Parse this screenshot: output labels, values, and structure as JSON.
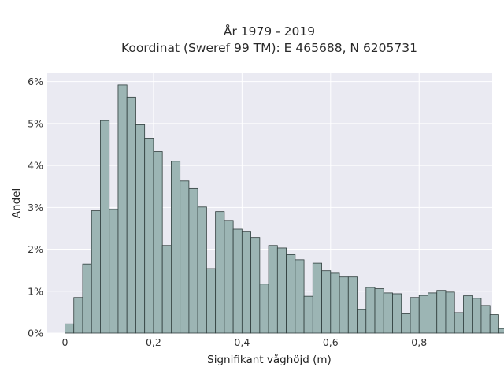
{
  "chart_data": {
    "type": "bar",
    "title_lines": [
      "År 1979 - 2019",
      "Koordinat (Sweref 99 TM): E 465688, N 6205731"
    ],
    "xlabel": "Signifikant våghöjd (m)",
    "ylabel": "Andel",
    "x_ticks": [
      {
        "value": 0,
        "label": "0"
      },
      {
        "value": 0.2,
        "label": "0,2"
      },
      {
        "value": 0.4,
        "label": "0,4"
      },
      {
        "value": 0.6,
        "label": "0,6"
      },
      {
        "value": 0.8,
        "label": "0,8"
      }
    ],
    "y_ticks": [
      {
        "value": 0,
        "label": "0%"
      },
      {
        "value": 1,
        "label": "1%"
      },
      {
        "value": 2,
        "label": "2%"
      },
      {
        "value": 3,
        "label": "3%"
      },
      {
        "value": 4,
        "label": "4%"
      },
      {
        "value": 5,
        "label": "5%"
      },
      {
        "value": 6,
        "label": "6%"
      }
    ],
    "xlim": [
      -0.04,
      0.965
    ],
    "ylim": [
      0,
      6.2
    ],
    "grid": true,
    "bin_start": 0.01,
    "bin_width": 0.02,
    "values": [
      0.22,
      0.85,
      1.65,
      2.92,
      5.07,
      2.95,
      5.92,
      5.63,
      4.97,
      4.65,
      4.33,
      2.09,
      4.1,
      3.63,
      3.45,
      3.01,
      1.54,
      2.9,
      2.69,
      2.48,
      2.43,
      2.28,
      1.17,
      2.09,
      2.03,
      1.87,
      1.75,
      0.88,
      1.67,
      1.49,
      1.43,
      1.34,
      1.34,
      0.56,
      1.09,
      1.06,
      0.96,
      0.94,
      0.46,
      0.85,
      0.9,
      0.96,
      1.02,
      0.98,
      0.49,
      0.89,
      0.83,
      0.66,
      0.44,
      0.11
    ],
    "colors": {
      "bar_fill": "#9cb5b4",
      "bar_stroke": "#2f3d3c",
      "plot_background": "#eaeaf2",
      "grid": "#ffffff"
    }
  }
}
